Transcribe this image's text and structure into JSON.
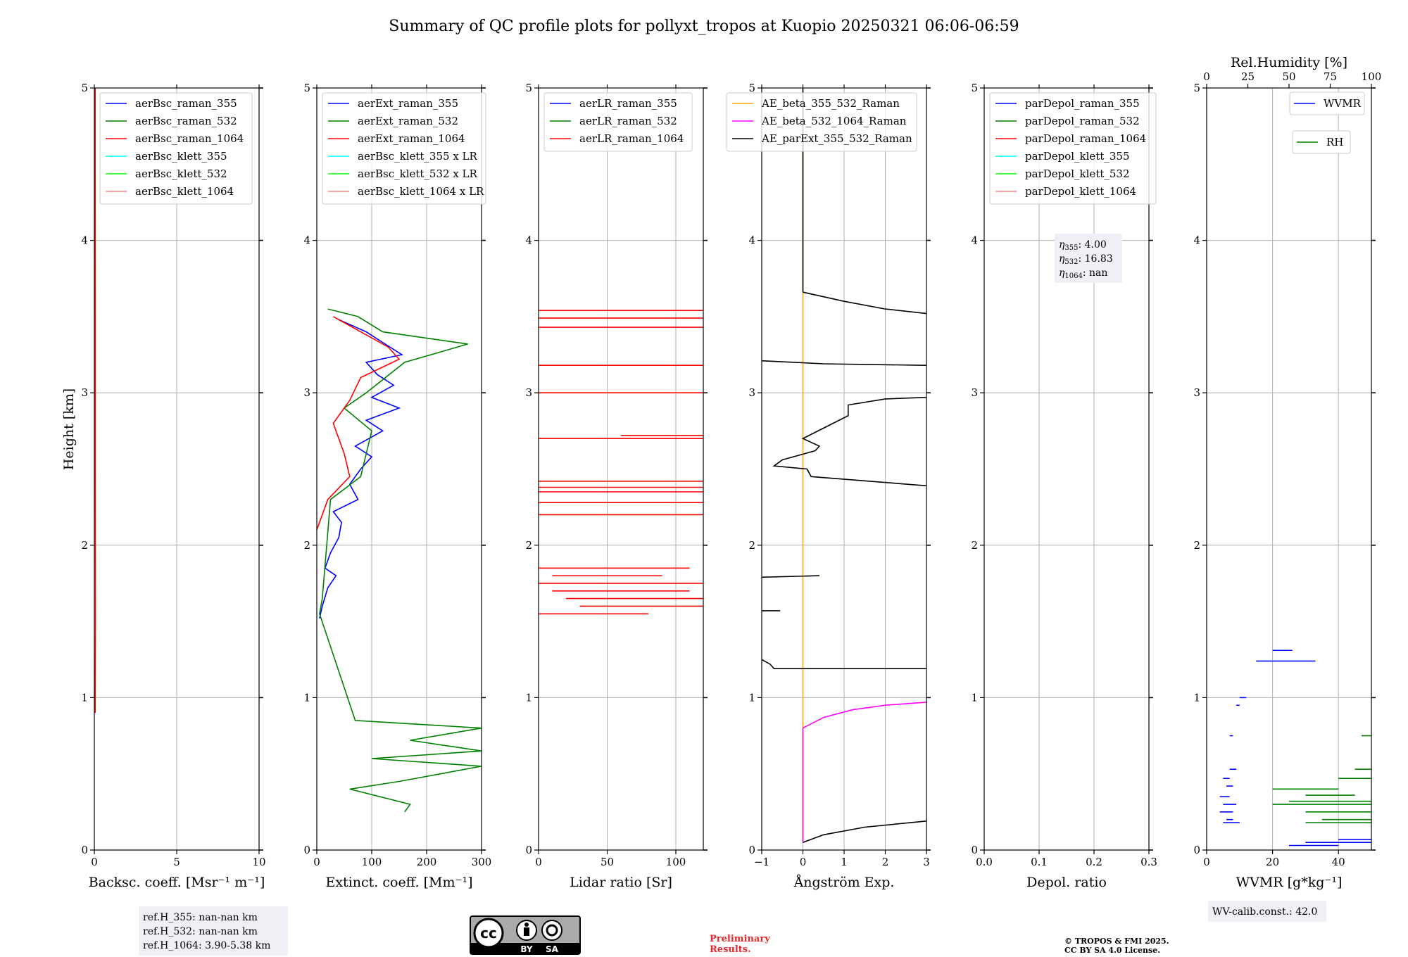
{
  "title": "Summary of QC profile plots for pollyxt_tropos at Kuopio 20250321 06:06-06:59",
  "ylabel": "Height [km]",
  "footer": {
    "license_text_1": "© TROPOS & FMI 2025.",
    "license_text_2": "CC BY SA 4.0 License.",
    "preliminary_1": "Preliminary",
    "preliminary_2": "Results.",
    "cc_badge": {
      "by": "BY",
      "sa": "SA",
      "cc": "cc"
    }
  },
  "colors": {
    "blue": "#0000ff",
    "green": "#008000",
    "red": "#ff0000",
    "cyan": "#00ffff",
    "lime": "#00ff00",
    "salmon": "#ff8080",
    "orange": "#ffa500",
    "magenta": "#ff00ff",
    "black": "#000000",
    "grid": "#b0b0b0",
    "box": "#eef0f5"
  },
  "chart_data": [
    {
      "type": "line",
      "xlabel": "Backsc. coeff. [Msr⁻¹ m⁻¹]",
      "xlim": [
        0,
        10
      ],
      "ylim": [
        0,
        5
      ],
      "xticks": [
        0,
        5,
        10
      ],
      "yticks": [
        0,
        1,
        2,
        3,
        4,
        5
      ],
      "legend": [
        "aerBsc_raman_355",
        "aerBsc_raman_532",
        "aerBsc_raman_1064",
        "aerBsc_klett_355",
        "aerBsc_klett_532",
        "aerBsc_klett_1064"
      ],
      "legend_colors": [
        "#0000ff",
        "#008000",
        "#ff0000",
        "#00ffff",
        "#00ff00",
        "#ff8080"
      ],
      "series": [
        {
          "color": "#ff0000",
          "points": [
            [
              0.05,
              0.9
            ],
            [
              0.07,
              1.5
            ],
            [
              0.06,
              2.5
            ],
            [
              0.06,
              3.5
            ],
            [
              0.05,
              4.5
            ],
            [
              0.05,
              5.0
            ]
          ]
        }
      ],
      "annotation": [
        "ref.H_355: nan-nan km",
        "ref.H_532: nan-nan km",
        "ref.H_1064: 3.90-5.38 km"
      ]
    },
    {
      "type": "line",
      "xlabel": "Extinct. coeff. [Mm⁻¹]",
      "xlim": [
        0,
        300
      ],
      "ylim": [
        0,
        5
      ],
      "xticks": [
        0,
        100,
        200,
        300
      ],
      "yticks": [
        0,
        1,
        2,
        3,
        4,
        5
      ],
      "legend": [
        "aerExt_raman_355",
        "aerExt_raman_532",
        "aerExt_raman_1064",
        "aerBsc_klett_355 x LR",
        "aerBsc_klett_532 x LR",
        "aerBsc_klett_1064 x LR"
      ],
      "legend_colors": [
        "#0000ff",
        "#008000",
        "#ff0000",
        "#00ffff",
        "#00ff00",
        "#ff8080"
      ],
      "series": [
        {
          "color": "#0000ff",
          "points": [
            [
              5,
              1.52
            ],
            [
              10,
              1.6
            ],
            [
              20,
              1.72
            ],
            [
              35,
              1.8
            ],
            [
              15,
              1.85
            ],
            [
              25,
              1.95
            ],
            [
              40,
              2.05
            ],
            [
              45,
              2.15
            ],
            [
              30,
              2.22
            ],
            [
              75,
              2.3
            ],
            [
              60,
              2.4
            ],
            [
              80,
              2.5
            ],
            [
              100,
              2.58
            ],
            [
              70,
              2.65
            ],
            [
              120,
              2.75
            ],
            [
              90,
              2.82
            ],
            [
              150,
              2.9
            ],
            [
              100,
              2.97
            ],
            [
              140,
              3.05
            ],
            [
              110,
              3.12
            ],
            [
              90,
              3.2
            ],
            [
              155,
              3.25
            ],
            [
              120,
              3.33
            ],
            [
              90,
              3.4
            ],
            [
              40,
              3.48
            ]
          ]
        },
        {
          "color": "#008000",
          "points": [
            [
              160,
              0.25
            ],
            [
              170,
              0.3
            ],
            [
              60,
              0.4
            ],
            [
              150,
              0.45
            ],
            [
              300,
              0.55
            ],
            [
              100,
              0.6
            ],
            [
              300,
              0.65
            ],
            [
              170,
              0.72
            ],
            [
              300,
              0.8
            ],
            [
              70,
              0.85
            ],
            [
              5,
              1.55
            ],
            [
              10,
              1.65
            ],
            [
              25,
              2.3
            ],
            [
              80,
              2.45
            ],
            [
              90,
              2.6
            ],
            [
              100,
              2.75
            ],
            [
              50,
              2.9
            ],
            [
              90,
              3.0
            ],
            [
              160,
              3.2
            ],
            [
              275,
              3.32
            ],
            [
              120,
              3.4
            ],
            [
              75,
              3.5
            ],
            [
              20,
              3.55
            ]
          ]
        },
        {
          "color": "#ff0000",
          "points": [
            [
              0,
              2.1
            ],
            [
              20,
              2.3
            ],
            [
              60,
              2.45
            ],
            [
              50,
              2.6
            ],
            [
              40,
              2.7
            ],
            [
              30,
              2.8
            ],
            [
              60,
              2.95
            ],
            [
              80,
              3.1
            ],
            [
              150,
              3.22
            ],
            [
              130,
              3.3
            ],
            [
              80,
              3.4
            ],
            [
              30,
              3.5
            ]
          ]
        }
      ],
      "annotation": []
    },
    {
      "type": "line",
      "xlabel": "Lidar ratio [Sr]",
      "xlim": [
        0,
        120
      ],
      "ylim": [
        0,
        5
      ],
      "xticks": [
        0,
        50,
        100
      ],
      "yticks": [
        0,
        1,
        2,
        3,
        4,
        5
      ],
      "legend": [
        "aerLR_raman_355",
        "aerLR_raman_532",
        "aerLR_raman_1064"
      ],
      "legend_colors": [
        "#0000ff",
        "#008000",
        "#ff0000"
      ],
      "series": [
        {
          "color": "#ff0000",
          "hlines": [
            [
              1.55,
              0,
              80
            ],
            [
              1.6,
              30,
              120
            ],
            [
              1.65,
              20,
              120
            ],
            [
              1.7,
              10,
              110
            ],
            [
              1.75,
              0,
              120
            ],
            [
              1.8,
              10,
              90
            ],
            [
              1.85,
              0,
              110
            ],
            [
              2.2,
              0,
              120
            ],
            [
              2.28,
              0,
              120
            ],
            [
              2.35,
              0,
              120
            ],
            [
              2.38,
              0,
              120
            ],
            [
              2.42,
              0,
              120
            ],
            [
              2.7,
              0,
              120
            ],
            [
              2.72,
              60,
              120
            ],
            [
              3.0,
              0,
              120
            ],
            [
              3.18,
              0,
              120
            ],
            [
              3.43,
              0,
              120
            ],
            [
              3.49,
              0,
              120
            ],
            [
              3.54,
              0,
              120
            ]
          ]
        }
      ],
      "annotation": []
    },
    {
      "type": "line",
      "xlabel": "Ångström Exp.",
      "xlim": [
        -1,
        3
      ],
      "ylim": [
        0,
        5
      ],
      "xticks": [
        -1,
        0,
        1,
        2,
        3
      ],
      "yticks": [
        0,
        1,
        2,
        3,
        4,
        5
      ],
      "legend": [
        "AE_beta_355_532_Raman",
        "AE_beta_532_1064_Raman",
        "AE_parExt_355_532_Raman"
      ],
      "legend_colors": [
        "#ffa500",
        "#ff00ff",
        "#000000"
      ],
      "series": [
        {
          "color": "#ffa500",
          "points": [
            [
              0,
              0.05
            ],
            [
              0,
              5.0
            ]
          ]
        },
        {
          "color": "#ff00ff",
          "points": [
            [
              0,
              0.05
            ],
            [
              0,
              0.8
            ],
            [
              0.5,
              0.87
            ],
            [
              1.2,
              0.92
            ],
            [
              2.0,
              0.95
            ],
            [
              3.0,
              0.97
            ]
          ]
        },
        {
          "color": "#000000",
          "points": [
            [
              0,
              0.05
            ],
            [
              0.5,
              0.1
            ],
            [
              1.5,
              0.15
            ],
            [
              3.0,
              0.19
            ]
          ]
        },
        {
          "color": "#000000",
          "points": [
            [
              -1,
              1.25
            ],
            [
              -0.8,
              1.22
            ],
            [
              -0.7,
              1.19
            ],
            [
              3.0,
              1.19
            ]
          ]
        },
        {
          "color": "#000000",
          "points": [
            [
              -1,
              1.57
            ],
            [
              -0.55,
              1.57
            ]
          ]
        },
        {
          "color": "#000000",
          "points": [
            [
              -1,
              1.79
            ],
            [
              0.4,
              1.8
            ]
          ]
        },
        {
          "color": "#000000",
          "points": [
            [
              3.0,
              2.39
            ],
            [
              0.2,
              2.45
            ],
            [
              0.1,
              2.5
            ],
            [
              -0.7,
              2.52
            ],
            [
              -0.5,
              2.56
            ],
            [
              0.3,
              2.62
            ],
            [
              0.4,
              2.65
            ],
            [
              0.0,
              2.7
            ],
            [
              1.1,
              2.85
            ],
            [
              1.1,
              2.92
            ],
            [
              2.0,
              2.96
            ],
            [
              3.0,
              2.97
            ]
          ]
        },
        {
          "color": "#000000",
          "points": [
            [
              -1,
              3.21
            ],
            [
              0.5,
              3.19
            ],
            [
              3.0,
              3.18
            ]
          ]
        },
        {
          "color": "#000000",
          "points": [
            [
              0,
              3.66
            ],
            [
              1.0,
              3.6
            ],
            [
              2.0,
              3.55
            ],
            [
              3.0,
              3.52
            ]
          ]
        },
        {
          "color": "#000000",
          "points": [
            [
              0,
              3.66
            ],
            [
              0,
              5.0
            ]
          ]
        }
      ],
      "annotation": []
    },
    {
      "type": "line",
      "xlabel": "Depol. ratio",
      "xlim": [
        0,
        0.3
      ],
      "ylim": [
        0,
        5
      ],
      "xticks": [
        0.0,
        0.1,
        0.2,
        0.3
      ],
      "yticks": [
        0,
        1,
        2,
        3,
        4,
        5
      ],
      "legend": [
        "parDepol_raman_355",
        "parDepol_raman_532",
        "parDepol_raman_1064",
        "parDepol_klett_355",
        "parDepol_klett_532",
        "parDepol_klett_1064"
      ],
      "legend_colors": [
        "#0000ff",
        "#008000",
        "#ff0000",
        "#00ffff",
        "#00ff00",
        "#ff8080"
      ],
      "series": [],
      "annotation": [
        "η355: 4.00",
        "η532: 16.83",
        "η1064: nan"
      ]
    },
    {
      "type": "line",
      "xlabel": "WVMR [g*kg⁻¹]",
      "xlabel_top": "Rel.Humidity [%]",
      "xlim": [
        0,
        50
      ],
      "ylim": [
        0,
        5
      ],
      "xticks": [
        0,
        20,
        40
      ],
      "yticks": [
        0,
        1,
        2,
        3,
        4,
        5
      ],
      "top_xticks": [
        0,
        25,
        50,
        75,
        100
      ],
      "legend": [
        "WVMR",
        "RH"
      ],
      "legend_colors": [
        "#0000ff",
        "#008000"
      ],
      "series": [
        {
          "color": "#0000ff",
          "hlines": [
            [
              0.03,
              25,
              40
            ],
            [
              0.05,
              30,
              50
            ],
            [
              0.07,
              40,
              50
            ],
            [
              0.18,
              5,
              10
            ],
            [
              0.2,
              6,
              8
            ],
            [
              0.25,
              4,
              8
            ],
            [
              0.3,
              5,
              9
            ],
            [
              0.35,
              4,
              7
            ],
            [
              0.42,
              6,
              8
            ],
            [
              0.47,
              5,
              7
            ],
            [
              0.53,
              7,
              9
            ],
            [
              0.75,
              7,
              8
            ],
            [
              0.95,
              9,
              10
            ],
            [
              1.0,
              10,
              12
            ],
            [
              1.24,
              15,
              33
            ],
            [
              1.31,
              20,
              26
            ]
          ]
        },
        {
          "color": "#008000",
          "hlines": [
            [
              0.18,
              30,
              50
            ],
            [
              0.2,
              35,
              50
            ],
            [
              0.25,
              30,
              50
            ],
            [
              0.3,
              20,
              50
            ],
            [
              0.32,
              25,
              50
            ],
            [
              0.36,
              30,
              45
            ],
            [
              0.4,
              20,
              40
            ],
            [
              0.47,
              40,
              50
            ],
            [
              0.53,
              45,
              50
            ],
            [
              0.75,
              47,
              50
            ]
          ]
        }
      ],
      "annotation": [
        "WV-calib.const.: 42.0"
      ]
    }
  ]
}
